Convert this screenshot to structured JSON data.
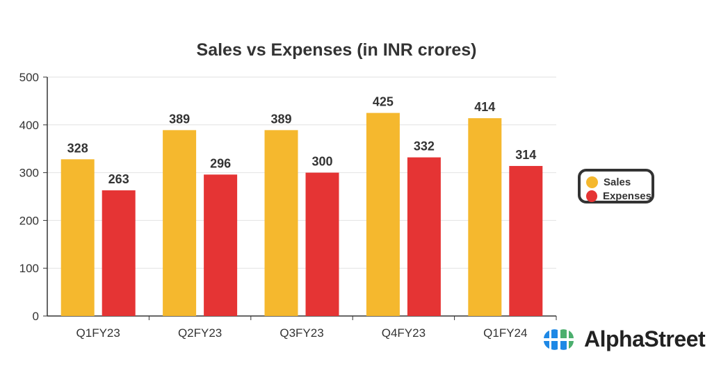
{
  "chart_data": {
    "type": "bar",
    "title": "Sales vs Expenses (in INR crores)",
    "categories": [
      "Q1FY23",
      "Q2FY23",
      "Q3FY23",
      "Q4FY23",
      "Q1FY24"
    ],
    "series": [
      {
        "name": "Sales",
        "values": [
          328,
          389,
          389,
          425,
          414
        ],
        "color": "#F5B82E"
      },
      {
        "name": "Expenses",
        "values": [
          263,
          296,
          300,
          332,
          314
        ],
        "color": "#E53434"
      }
    ],
    "ylim": [
      0,
      500
    ],
    "yticks": [
      0,
      100,
      200,
      300,
      400,
      500
    ],
    "grid": true,
    "legend": "right"
  },
  "logo": {
    "text": "AlphaStreet"
  }
}
